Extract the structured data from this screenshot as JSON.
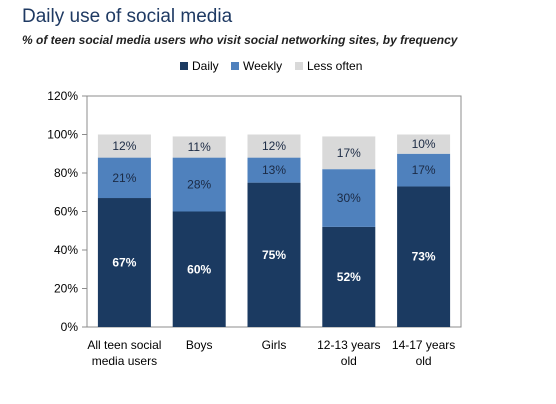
{
  "chart_data": {
    "type": "bar",
    "stacked": true,
    "title": "Daily use of social media",
    "subtitle": "% of teen social media users who visit social networking sites, by frequency",
    "categories": [
      [
        "All teen social",
        "media users"
      ],
      [
        "Boys"
      ],
      [
        "Girls"
      ],
      [
        "12-13 years",
        "old"
      ],
      [
        "14-17 years",
        "old"
      ]
    ],
    "series": [
      {
        "name": "Daily",
        "color": "#1b3a61",
        "values": [
          67,
          60,
          75,
          52,
          73
        ],
        "labels": [
          "67%",
          "60%",
          "75%",
          "52%",
          "73%"
        ]
      },
      {
        "name": "Weekly",
        "color": "#4f81bd",
        "values": [
          21,
          28,
          13,
          30,
          17
        ],
        "labels": [
          "21%",
          "28%",
          "13%",
          "30%",
          "17%"
        ]
      },
      {
        "name": "Less often",
        "color": "#d9d9d9",
        "values": [
          12,
          11,
          12,
          17,
          10
        ],
        "labels": [
          "12%",
          "11%",
          "12%",
          "17%",
          "10%"
        ]
      }
    ],
    "ylim": [
      0,
      120
    ],
    "yticks": [
      {
        "value": 0,
        "label": "0%"
      },
      {
        "value": 20,
        "label": "20%"
      },
      {
        "value": 40,
        "label": "40%"
      },
      {
        "value": 60,
        "label": "60%"
      },
      {
        "value": 80,
        "label": "80%"
      },
      {
        "value": 100,
        "label": "100%"
      },
      {
        "value": 120,
        "label": "120%"
      }
    ],
    "grid": false,
    "legend": "top-center"
  }
}
